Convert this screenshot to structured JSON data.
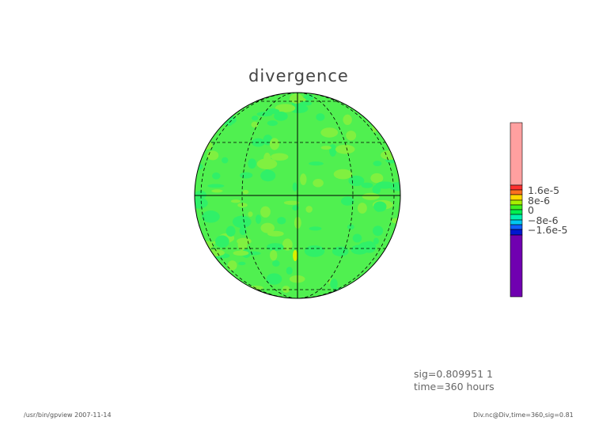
{
  "title": "divergence",
  "colorbar": {
    "labels": [
      "1.6e-5",
      "8e-6",
      "0",
      "−8e-6",
      "−1.6e-5"
    ],
    "colors": [
      "#ffa0a0",
      "#ff3030",
      "#ff7020",
      "#ffd800",
      "#a8f000",
      "#40f020",
      "#00f050",
      "#00f0b0",
      "#00c8f0",
      "#1060ff",
      "#0018d0",
      "#7000b0"
    ]
  },
  "info": {
    "sig": "sig=0.809951 1",
    "time": "time=360 hours"
  },
  "footer": {
    "left": "/usr/bin/gpview  2007-11-14",
    "right": "Div.nc@Div,time=360,sig=0.81"
  },
  "map": {
    "background_color": "#50f050",
    "projection": "orthographic"
  }
}
